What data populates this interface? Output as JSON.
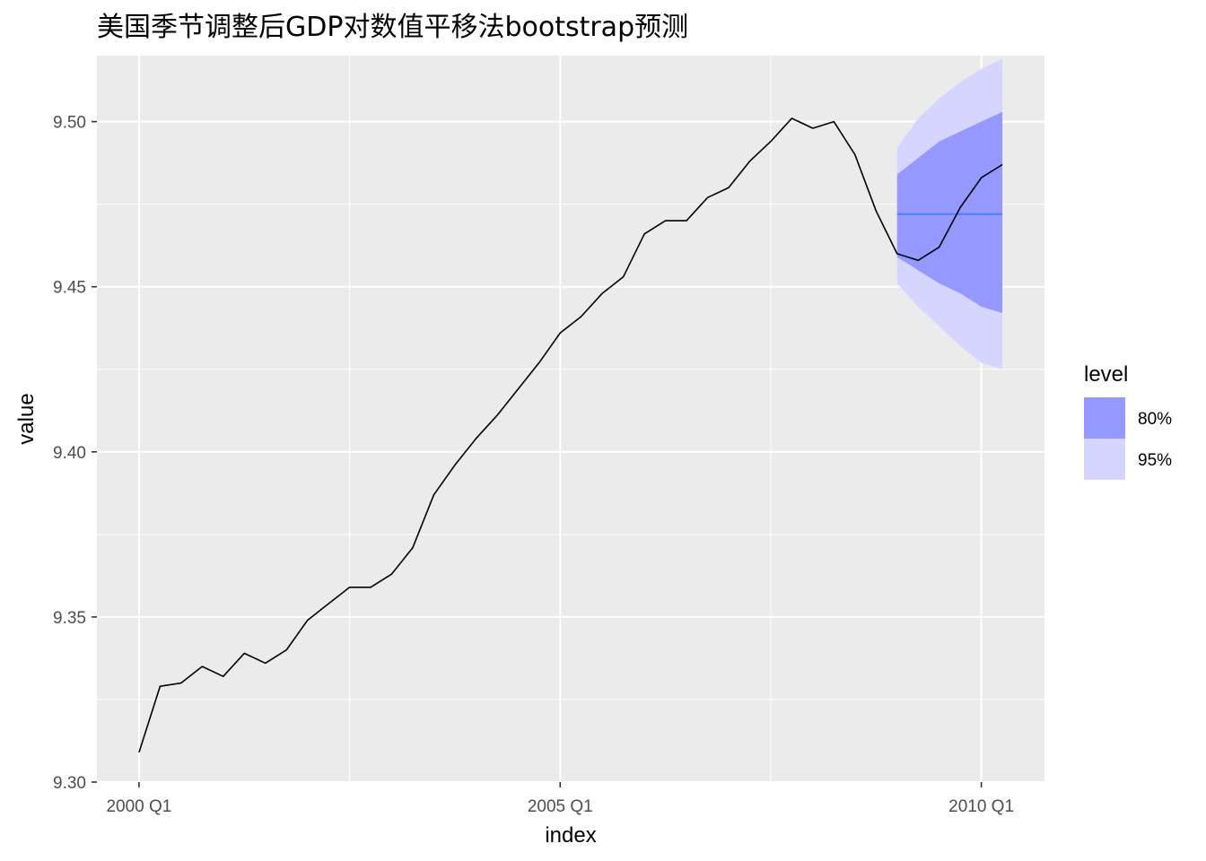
{
  "chart_data": {
    "type": "line",
    "title": "美国季节调整后GDP对数值平移法bootstrap预测",
    "xlabel": "index",
    "ylabel": "value",
    "x_ticks": [
      {
        "label": "2000 Q1",
        "quarter_index": 0
      },
      {
        "label": "2005 Q1",
        "quarter_index": 20
      },
      {
        "label": "2010 Q1",
        "quarter_index": 40
      }
    ],
    "y_ticks": [
      "9.30",
      "9.35",
      "9.40",
      "9.45",
      "9.50"
    ],
    "xlim_quarter_index": [
      -2,
      43
    ],
    "ylim": [
      9.3,
      9.52
    ],
    "x_start": "2000 Q1",
    "grid": true,
    "series": [
      {
        "color": "#000000",
        "values": [
          9.309,
          9.329,
          9.33,
          9.335,
          9.332,
          9.339,
          9.336,
          9.34,
          9.349,
          9.354,
          9.359,
          9.359,
          9.363,
          9.371,
          9.387,
          9.396,
          9.404,
          9.411,
          9.419,
          9.427,
          9.436,
          9.441,
          9.448,
          9.453,
          9.466,
          9.47,
          9.47,
          9.477,
          9.48,
          9.488,
          9.494,
          9.501,
          9.498,
          9.5,
          9.49,
          9.473,
          9.46,
          9.458,
          9.462,
          9.474,
          9.483,
          9.487
        ]
      }
    ],
    "forecast": {
      "start_quarter_index": 36,
      "mean_color": "#4c7eff",
      "mean": [
        9.472,
        9.472,
        9.472,
        9.472,
        9.472,
        9.472
      ],
      "lower80": [
        9.459,
        9.455,
        9.451,
        9.448,
        9.444,
        9.442
      ],
      "upper80": [
        9.484,
        9.489,
        9.494,
        9.497,
        9.5,
        9.503
      ],
      "lower95": [
        9.451,
        9.444,
        9.438,
        9.432,
        9.427,
        9.425
      ],
      "upper95": [
        9.492,
        9.501,
        9.507,
        9.512,
        9.516,
        9.519
      ]
    },
    "legend": {
      "title": "level",
      "position": "right",
      "entries": [
        {
          "label": "80%",
          "color": "#9599ff"
        },
        {
          "label": "95%",
          "color": "#d5d5ff"
        }
      ]
    },
    "colors": {
      "panel_background": "#ebebeb",
      "grid": "#ffffff"
    }
  }
}
